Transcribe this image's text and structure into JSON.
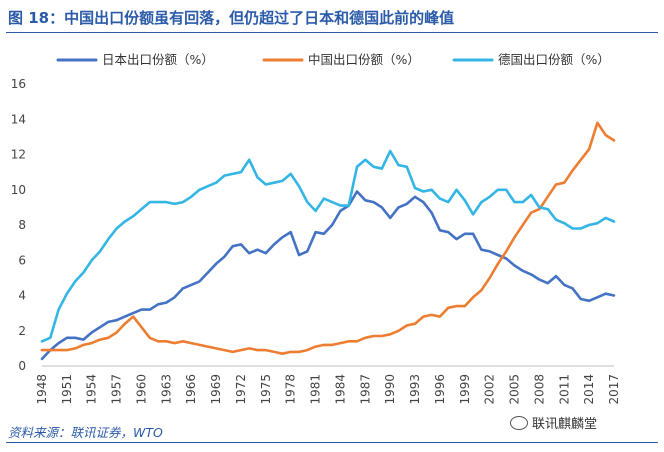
{
  "header": {
    "title": "图 18：中国出口份额虽有回落，但仍超过了日本和德国此前的峰值"
  },
  "footer": {
    "source": "资料来源：联讯证券，WTO",
    "watermark": "联讯麒麟堂"
  },
  "colors": {
    "accent": "#2B5BA8",
    "japan": "#4472C4",
    "china": "#ED7D31",
    "germany": "#33B5E5"
  },
  "chart_data": {
    "type": "line",
    "title": "",
    "xlabel": "",
    "ylabel": "",
    "xlim": [
      1948,
      2017
    ],
    "ylim": [
      0,
      16
    ],
    "y_ticks": [
      "0",
      "2",
      "4",
      "6",
      "8",
      "10",
      "12",
      "14",
      "16"
    ],
    "x_ticks": [
      "1948",
      "1951",
      "1954",
      "1957",
      "1960",
      "1963",
      "1966",
      "1969",
      "1972",
      "1975",
      "1978",
      "1981",
      "1984",
      "1987",
      "1990",
      "1993",
      "1996",
      "1999",
      "2002",
      "2005",
      "2008",
      "2011",
      "2014",
      "2017"
    ],
    "grid": false,
    "legend_position": "top",
    "x": [
      1948,
      1949,
      1950,
      1951,
      1952,
      1953,
      1954,
      1955,
      1956,
      1957,
      1958,
      1959,
      1960,
      1961,
      1962,
      1963,
      1964,
      1965,
      1966,
      1967,
      1968,
      1969,
      1970,
      1971,
      1972,
      1973,
      1974,
      1975,
      1976,
      1977,
      1978,
      1979,
      1980,
      1981,
      1982,
      1983,
      1984,
      1985,
      1986,
      1987,
      1988,
      1989,
      1990,
      1991,
      1992,
      1993,
      1994,
      1995,
      1996,
      1997,
      1998,
      1999,
      2000,
      2001,
      2002,
      2003,
      2004,
      2005,
      2006,
      2007,
      2008,
      2009,
      2010,
      2011,
      2012,
      2013,
      2014,
      2015,
      2016,
      2017
    ],
    "series": [
      {
        "name": "日本出口份额（%）",
        "color": "#4472C4",
        "values": [
          0.4,
          0.9,
          1.3,
          1.6,
          1.6,
          1.5,
          1.9,
          2.2,
          2.5,
          2.6,
          2.8,
          3.0,
          3.2,
          3.2,
          3.5,
          3.6,
          3.9,
          4.4,
          4.6,
          4.8,
          5.3,
          5.8,
          6.2,
          6.8,
          6.9,
          6.4,
          6.6,
          6.4,
          6.9,
          7.3,
          7.6,
          6.3,
          6.5,
          7.6,
          7.5,
          8.0,
          8.8,
          9.1,
          9.9,
          9.4,
          9.3,
          9.0,
          8.4,
          9.0,
          9.2,
          9.6,
          9.3,
          8.7,
          7.7,
          7.6,
          7.2,
          7.5,
          7.5,
          6.6,
          6.5,
          6.3,
          6.1,
          5.7,
          5.4,
          5.2,
          4.9,
          4.7,
          5.1,
          4.6,
          4.4,
          3.8,
          3.7,
          3.9,
          4.1,
          4.0
        ]
      },
      {
        "name": "中国出口份额（%）",
        "color": "#ED7D31",
        "values": [
          0.9,
          0.9,
          0.9,
          0.9,
          1.0,
          1.2,
          1.3,
          1.5,
          1.6,
          1.9,
          2.4,
          2.8,
          2.2,
          1.6,
          1.4,
          1.4,
          1.3,
          1.4,
          1.3,
          1.2,
          1.1,
          1.0,
          0.9,
          0.8,
          0.9,
          1.0,
          0.9,
          0.9,
          0.8,
          0.7,
          0.8,
          0.8,
          0.9,
          1.1,
          1.2,
          1.2,
          1.3,
          1.4,
          1.4,
          1.6,
          1.7,
          1.7,
          1.8,
          2.0,
          2.3,
          2.4,
          2.8,
          2.9,
          2.8,
          3.3,
          3.4,
          3.4,
          3.9,
          4.3,
          5.0,
          5.8,
          6.5,
          7.3,
          8.0,
          8.7,
          8.9,
          9.6,
          10.3,
          10.4,
          11.1,
          11.7,
          12.3,
          13.8,
          13.1,
          12.8
        ]
      },
      {
        "name": "德国出口份额（%）",
        "color": "#33B5E5",
        "values": [
          1.4,
          1.6,
          3.2,
          4.1,
          4.8,
          5.3,
          6.0,
          6.5,
          7.2,
          7.8,
          8.2,
          8.5,
          8.9,
          9.3,
          9.3,
          9.3,
          9.2,
          9.3,
          9.6,
          10.0,
          10.2,
          10.4,
          10.8,
          10.9,
          11.0,
          11.7,
          10.7,
          10.3,
          10.4,
          10.5,
          10.9,
          10.2,
          9.3,
          8.8,
          9.5,
          9.3,
          9.1,
          9.1,
          11.3,
          11.7,
          11.3,
          11.2,
          12.2,
          11.4,
          11.3,
          10.1,
          9.9,
          10.0,
          9.5,
          9.3,
          10.0,
          9.4,
          8.6,
          9.3,
          9.6,
          10.0,
          10.0,
          9.3,
          9.3,
          9.7,
          9.0,
          8.9,
          8.3,
          8.1,
          7.8,
          7.8,
          8.0,
          8.1,
          8.4,
          8.2
        ]
      }
    ]
  }
}
